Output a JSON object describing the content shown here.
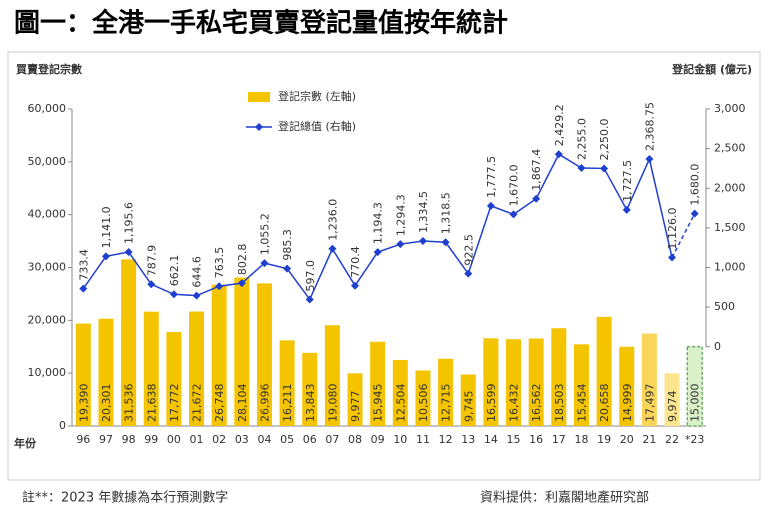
{
  "chart_data": {
    "type": "bar_line",
    "title": "圖一：全港一手私宅買賣登記量值按年統計",
    "y_label": "買賣登記宗數",
    "y2_label": "登記金額 (億元)",
    "x_label": "年份",
    "footnote": "註**：2023 年數據為本行預測數字",
    "source": "資料提供：利嘉閣地產研究部",
    "categories": [
      "96",
      "97",
      "98",
      "99",
      "00",
      "01",
      "02",
      "03",
      "04",
      "05",
      "06",
      "07",
      "08",
      "09",
      "10",
      "11",
      "12",
      "13",
      "14",
      "15",
      "16",
      "17",
      "18",
      "19",
      "20",
      "21",
      "22",
      "*23"
    ],
    "series": [
      {
        "name": "登記宗數 (左軸)",
        "color": "#f5c400",
        "kind": "bar",
        "colors": [
          "#f5c400",
          "#f5c400",
          "#f5c400",
          "#f5c400",
          "#f5c400",
          "#f5c400",
          "#f5c400",
          "#f5c400",
          "#f5c400",
          "#f5c400",
          "#f5c400",
          "#f5c400",
          "#f5c400",
          "#f5c400",
          "#f5c400",
          "#f5c400",
          "#f5c400",
          "#f5c400",
          "#f5c400",
          "#f5c400",
          "#f5c400",
          "#f5c400",
          "#f5c400",
          "#f5c400",
          "#f5c400",
          "#fbd55a",
          "#fde48e",
          "#d9f0c8"
        ],
        "values": [
          19390,
          20301,
          31536,
          21638,
          17772,
          21672,
          26748,
          28104,
          26996,
          16211,
          13843,
          19080,
          9977,
          15945,
          12504,
          10506,
          12715,
          9745,
          16599,
          16432,
          16562,
          18503,
          15454,
          20658,
          14999,
          17497,
          9974,
          15000
        ],
        "value_labels": [
          "19,390",
          "20,301",
          "31,536",
          "21,638",
          "17,772",
          "21,672",
          "26,748",
          "28,104",
          "26,996",
          "16,211",
          "13,843",
          "19,080",
          "9,977",
          "15,945",
          "12,504",
          "10,506",
          "12,715",
          "9,745",
          "16,599",
          "16,432",
          "16,562",
          "18,503",
          "15,454",
          "20,658",
          "14,999",
          "17,497",
          "9,974",
          "15,000"
        ]
      },
      {
        "name": "登記總值 (右軸)",
        "color": "#1f3fcf",
        "kind": "line",
        "axis": "y2",
        "values": [
          733.4,
          1141.0,
          1195.6,
          787.9,
          662.1,
          644.6,
          763.5,
          802.8,
          1055.2,
          985.3,
          597.0,
          1236.0,
          770.4,
          1194.3,
          1294.3,
          1334.5,
          1318.5,
          922.5,
          1777.5,
          1670.0,
          1867.4,
          2429.2,
          2255.0,
          2250.0,
          1727.5,
          2368.75,
          1126.0,
          1680.0
        ],
        "value_labels": [
          "733.4",
          "1,141.0",
          "1,195.6",
          "787.9",
          "662.1",
          "644.6",
          "763.5",
          "802.8",
          "1,055.2",
          "985.3",
          "597.0",
          "1,236.0",
          "770.4",
          "1,194.3",
          "1,294.3",
          "1,334.5",
          "1,318.5",
          "922.5",
          "1,777.5",
          "1,670.0",
          "1,867.4",
          "2,429.2",
          "2,255.0",
          "2,250.0",
          "1,727.5",
          "2,368.75",
          "1,126.0",
          "1,680.0"
        ]
      }
    ],
    "ylim": [
      0,
      60000
    ],
    "yticks": [
      0,
      {
        "value": 10000,
        "label": "10,000"
      },
      {
        "value": 20000,
        "label": "20,000"
      },
      {
        "value": 30000,
        "label": "30,000"
      },
      {
        "value": 40000,
        "label": "40,000"
      },
      {
        "value": 50000,
        "label": "50,000"
      },
      {
        "value": 60000,
        "label": "60,000"
      }
    ],
    "y2lim": [
      -1000,
      3000
    ],
    "y2ticks": [
      0,
      500,
      {
        "value": 1000,
        "label": "1,000"
      },
      {
        "value": 1500,
        "label": "1,500"
      },
      {
        "value": 2000,
        "label": "2,000"
      },
      {
        "value": 2500,
        "label": "2,500"
      },
      {
        "value": 3000,
        "label": "3,000"
      }
    ],
    "dashed_last": true,
    "label_color": "#d22020"
  }
}
